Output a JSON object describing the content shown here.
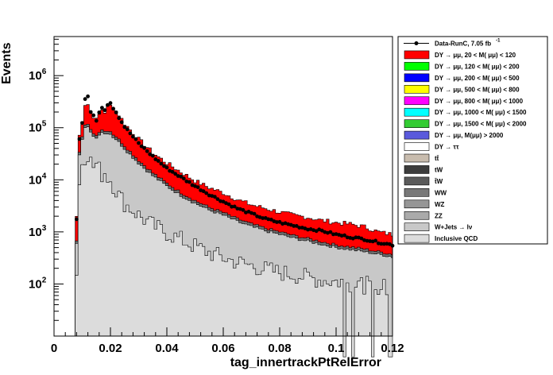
{
  "chart_data": {
    "type": "histogram-stack",
    "xlabel": "tag_innertrackPtRelError",
    "ylabel": "Events",
    "xlim": [
      0,
      0.12
    ],
    "ylim_log10": [
      1.0,
      6.75
    ],
    "y_scale": "log",
    "x_ticks": [
      {
        "v": 0,
        "label": "0"
      },
      {
        "v": 0.02,
        "label": "0.02"
      },
      {
        "v": 0.04,
        "label": "0.04"
      },
      {
        "v": 0.06,
        "label": "0.06"
      },
      {
        "v": 0.08,
        "label": "0.08"
      },
      {
        "v": 0.1,
        "label": "0.1"
      },
      {
        "v": 0.12,
        "label": "0.12"
      }
    ],
    "y_ticks": [
      {
        "exp": 2,
        "base": "10",
        "sup": "2"
      },
      {
        "exp": 3,
        "base": "10",
        "sup": "3"
      },
      {
        "exp": 4,
        "base": "10",
        "sup": "4"
      },
      {
        "exp": 5,
        "base": "10",
        "sup": "5"
      },
      {
        "exp": 6,
        "base": "10",
        "sup": "6"
      }
    ],
    "shape": {
      "x_knots": [
        0.0075,
        0.008,
        0.0085,
        0.009,
        0.0095,
        0.01,
        0.011,
        0.012,
        0.013,
        0.014,
        0.015,
        0.016,
        0.017,
        0.018,
        0.019,
        0.02,
        0.021,
        0.022,
        0.023,
        0.025,
        0.03,
        0.035,
        0.04,
        0.045,
        0.05,
        0.055,
        0.06,
        0.065,
        0.07,
        0.075,
        0.08,
        0.085,
        0.09,
        0.095,
        0.1,
        0.105,
        0.11,
        0.115,
        0.12
      ],
      "total_log10": [
        3.2,
        3.3,
        3.9,
        4.85,
        5.0,
        5.15,
        5.45,
        5.45,
        5.3,
        5.22,
        5.15,
        5.25,
        5.35,
        5.3,
        5.4,
        5.42,
        5.38,
        5.32,
        5.25,
        5.08,
        4.78,
        4.52,
        4.32,
        4.15,
        3.98,
        3.85,
        3.75,
        3.62,
        3.52,
        3.45,
        3.38,
        3.32,
        3.28,
        3.22,
        3.18,
        3.15,
        3.1,
        3.0,
        2.95
      ],
      "data_log10": [
        3.2,
        3.25,
        3.85,
        4.8,
        4.95,
        5.1,
        5.55,
        5.6,
        5.3,
        5.22,
        5.15,
        5.3,
        5.4,
        5.35,
        5.45,
        5.48,
        5.38,
        5.3,
        5.2,
        5.02,
        4.7,
        4.45,
        4.22,
        4.05,
        3.88,
        3.72,
        3.58,
        3.45,
        3.35,
        3.25,
        3.18,
        3.12,
        3.06,
        3.02,
        2.95,
        2.9,
        2.86,
        2.8,
        2.75
      ],
      "wjets_log10": [
        2.4,
        2.8,
        3.5,
        4.5,
        4.7,
        4.8,
        5.0,
        5.0,
        4.9,
        4.85,
        4.8,
        4.88,
        4.92,
        4.88,
        4.9,
        4.88,
        4.82,
        4.78,
        4.72,
        4.6,
        4.32,
        4.08,
        3.88,
        3.7,
        3.55,
        3.42,
        3.32,
        3.2,
        3.1,
        3.02,
        2.95,
        2.88,
        2.82,
        2.76,
        2.7,
        2.66,
        2.62,
        2.57,
        2.52
      ],
      "qcd_log10": [
        1.8,
        2.2,
        2.9,
        3.9,
        4.2,
        4.35,
        4.45,
        4.5,
        4.35,
        4.25,
        4.3,
        4.2,
        4.1,
        4.15,
        4.05,
        4.0,
        3.9,
        3.8,
        3.7,
        3.55,
        3.32,
        3.12,
        2.98,
        2.85,
        2.72,
        2.6,
        2.5,
        2.42,
        2.35,
        2.28,
        2.22,
        2.18,
        2.12,
        2.08,
        2.05,
        2.02,
        1.98,
        1.95,
        1.9
      ]
    },
    "legend": [
      {
        "label": "Data-RunC, 7.05 fb",
        "sup": "-1",
        "marker": "point",
        "color": "#000000"
      },
      {
        "label": "DY → μμ, 20 < M( μμ) <  120",
        "color": "#ff0000"
      },
      {
        "label": "DY → μμ, 120 < M( μμ) <  200",
        "color": "#00ff00"
      },
      {
        "label": "DY → μμ, 200 < M( μμ) <  500",
        "color": "#0000ff"
      },
      {
        "label": "DY → μμ, 500 < M( μμ) <  800",
        "color": "#ffff00"
      },
      {
        "label": "DY → μμ, 800 < M( μμ) < 1000",
        "color": "#ff00ff"
      },
      {
        "label": "DY → μμ, 1000 < M( μμ) < 1500",
        "color": "#00ffff"
      },
      {
        "label": "DY → μμ, 1500 < M( μμ) < 2000",
        "color": "#33cc33"
      },
      {
        "label": "DY → μμ, M(μμ) > 2000",
        "color": "#5a5adc"
      },
      {
        "label": "DY → ττ",
        "color": "#ffffff"
      },
      {
        "label": "tt̄",
        "color": "#c8bcae"
      },
      {
        "label": "tW",
        "color": "#3c3c3c"
      },
      {
        "label": "t̄W",
        "color": "#5a5a5a"
      },
      {
        "label": "WW",
        "color": "#787878"
      },
      {
        "label": "WZ",
        "color": "#969696"
      },
      {
        "label": "ZZ",
        "color": "#aaaaaa"
      },
      {
        "label": "W+Jets  → lν",
        "color": "#c8c8c8"
      },
      {
        "label": "Inclusive QCD",
        "color": "#dcdcdc"
      }
    ]
  }
}
